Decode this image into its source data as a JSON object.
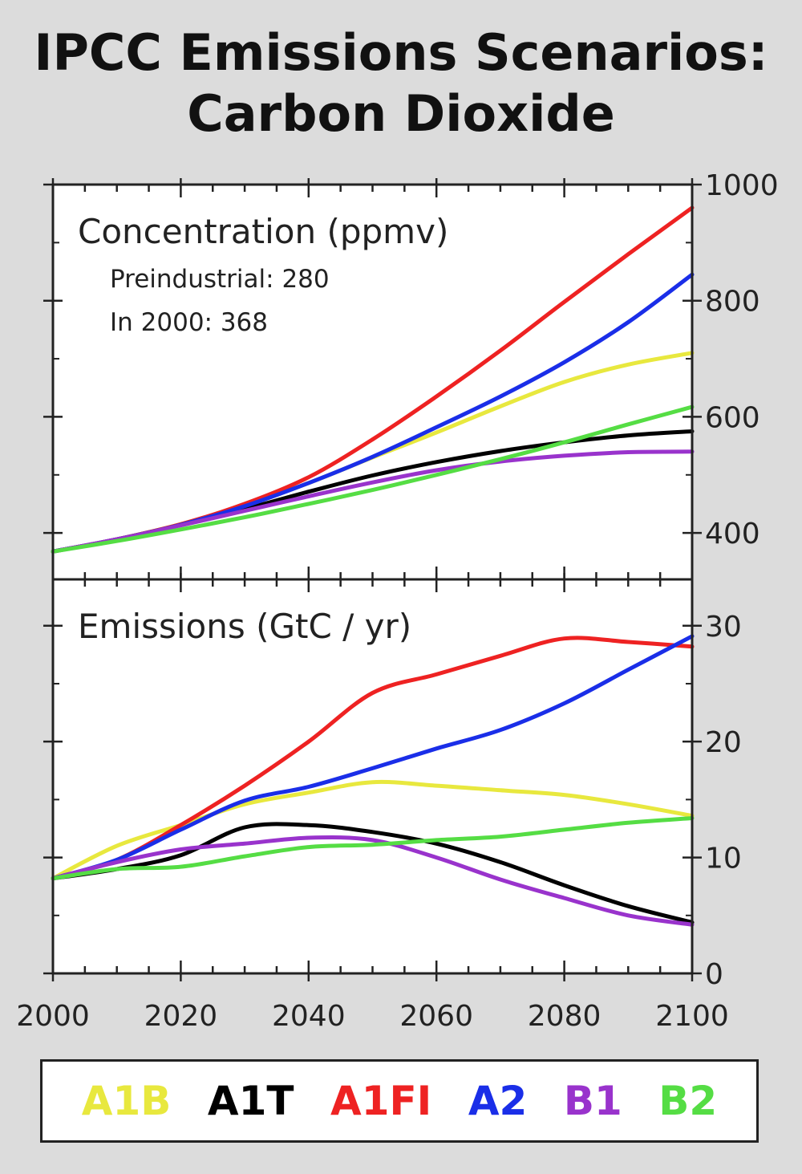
{
  "title_lines": [
    "IPCC Emissions Scenarios:",
    "Carbon Dioxide"
  ],
  "chart_data": [
    {
      "type": "line",
      "title": "Concentration (ppmv)",
      "annotations": [
        "Preindustrial: 280",
        "In 2000: 368"
      ],
      "x": [
        2000,
        2010,
        2020,
        2030,
        2040,
        2050,
        2060,
        2070,
        2080,
        2090,
        2100
      ],
      "xlim": [
        2000,
        2100
      ],
      "ylim": [
        320,
        1000
      ],
      "yticks": [
        400,
        600,
        800,
        1000
      ],
      "ylabel_side": "right",
      "series": [
        {
          "name": "A1B",
          "color": "#e8e83e",
          "values": [
            368,
            389,
            415,
            447,
            486,
            530,
            573,
            618,
            660,
            690,
            710
          ]
        },
        {
          "name": "A1T",
          "color": "#000000",
          "values": [
            368,
            389,
            414,
            441,
            471,
            499,
            522,
            541,
            556,
            568,
            575
          ]
        },
        {
          "name": "A1FI",
          "color": "#ee2222",
          "values": [
            368,
            389,
            415,
            450,
            496,
            561,
            635,
            714,
            798,
            880,
            960
          ]
        },
        {
          "name": "A2",
          "color": "#1a2ee8",
          "values": [
            368,
            389,
            414,
            446,
            486,
            531,
            582,
            635,
            694,
            763,
            845
          ]
        },
        {
          "name": "B1",
          "color": "#9933cc",
          "values": [
            368,
            389,
            413,
            438,
            463,
            487,
            508,
            523,
            533,
            539,
            540
          ]
        },
        {
          "name": "B2",
          "color": "#55dd44",
          "values": [
            368,
            386,
            406,
            427,
            450,
            474,
            500,
            527,
            556,
            587,
            617
          ]
        }
      ]
    },
    {
      "type": "line",
      "title": "Emissions (GtC / yr)",
      "x": [
        2000,
        2010,
        2020,
        2030,
        2040,
        2050,
        2060,
        2070,
        2080,
        2090,
        2100
      ],
      "xlim": [
        2000,
        2100
      ],
      "xticks": [
        "2000",
        "2020",
        "2040",
        "2060",
        "2080",
        "2100"
      ],
      "ylim": [
        0,
        34
      ],
      "yticks": [
        0,
        10,
        20,
        30
      ],
      "ylabel_side": "right",
      "series": [
        {
          "name": "A1B",
          "color": "#e8e83e",
          "values": [
            8.2,
            11.0,
            12.8,
            14.6,
            15.6,
            16.5,
            16.2,
            15.8,
            15.4,
            14.6,
            13.6
          ]
        },
        {
          "name": "A1T",
          "color": "#000000",
          "values": [
            8.2,
            9.0,
            10.2,
            12.6,
            12.8,
            12.2,
            11.2,
            9.6,
            7.6,
            5.8,
            4.4
          ]
        },
        {
          "name": "A1FI",
          "color": "#ee2222",
          "values": [
            8.2,
            9.8,
            12.8,
            16.2,
            20.0,
            24.2,
            25.8,
            27.4,
            28.9,
            28.6,
            28.2
          ]
        },
        {
          "name": "A2",
          "color": "#1a2ee8",
          "values": [
            8.2,
            9.8,
            12.4,
            14.9,
            16.1,
            17.7,
            19.4,
            21.0,
            23.3,
            26.2,
            29.1
          ]
        },
        {
          "name": "B1",
          "color": "#9933cc",
          "values": [
            8.2,
            9.6,
            10.7,
            11.2,
            11.7,
            11.5,
            10.0,
            8.1,
            6.5,
            5.0,
            4.2
          ]
        },
        {
          "name": "B2",
          "color": "#55dd44",
          "values": [
            8.2,
            9.0,
            9.2,
            10.1,
            10.9,
            11.1,
            11.5,
            11.8,
            12.4,
            13.0,
            13.4
          ]
        }
      ]
    }
  ],
  "legend": [
    {
      "label": "A1B",
      "color": "#e8e83e"
    },
    {
      "label": "A1T",
      "color": "#000000"
    },
    {
      "label": "A1FI",
      "color": "#ee2222"
    },
    {
      "label": "A2",
      "color": "#1a2ee8"
    },
    {
      "label": "B1",
      "color": "#9933cc"
    },
    {
      "label": "B2",
      "color": "#55dd44"
    }
  ]
}
